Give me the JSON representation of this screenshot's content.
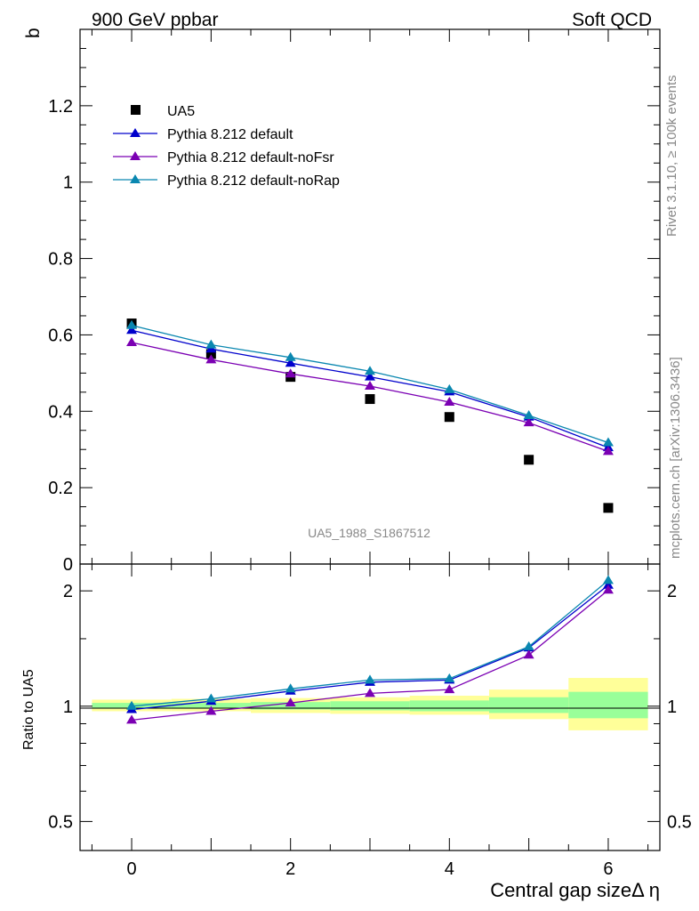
{
  "header": {
    "left": "900 GeV ppbar",
    "right": "Soft QCD"
  },
  "side_labels": {
    "rivet": "Rivet 3.1.10, ≥ 100k events",
    "mcplots": "mcplots.cern.ch [arXiv:1306.3436]"
  },
  "analysis_id": "UA5_1988_S1867512",
  "colors": {
    "ua5": "#000000",
    "default": "#0000cc",
    "noFsr": "#7b00b3",
    "noRap": "#0a87b0",
    "band_inner": "#99ff99",
    "band_outer": "#ffff99"
  },
  "chart_data": [
    {
      "type": "line",
      "panel": "main",
      "ylabel": "b",
      "ylim": [
        0,
        1.4
      ],
      "xlim": [
        -0.65,
        6.65
      ],
      "yticks": [
        0,
        0.2,
        0.4,
        0.6,
        0.8,
        1,
        1.2
      ],
      "ytick_labels": [
        "0",
        "0.2",
        "0.4",
        "0.6",
        "0.8",
        "1",
        "1.2"
      ],
      "x": [
        0,
        1,
        2,
        3,
        4,
        5,
        6
      ],
      "series": [
        {
          "key": "ua5",
          "name": "UA5",
          "marker": "square",
          "values": [
            0.63,
            0.55,
            0.49,
            0.432,
            0.385,
            0.273,
            0.147
          ]
        },
        {
          "key": "default",
          "name": "Pythia 8.212 default",
          "marker": "triangle",
          "values": [
            0.612,
            0.563,
            0.526,
            0.49,
            0.451,
            0.385,
            0.305
          ]
        },
        {
          "key": "noFsr",
          "name": "Pythia 8.212 default-noFsr",
          "marker": "triangle",
          "values": [
            0.58,
            0.535,
            0.498,
            0.466,
            0.424,
            0.37,
            0.295
          ]
        },
        {
          "key": "noRap",
          "name": "Pythia 8.212 default-noRap",
          "marker": "triangle",
          "values": [
            0.625,
            0.574,
            0.541,
            0.505,
            0.457,
            0.389,
            0.318
          ]
        }
      ]
    },
    {
      "type": "line",
      "panel": "ratio",
      "ylabel": "Ratio to UA5",
      "xlabel": "Central gap sizeΔ η",
      "yscale": "log",
      "ylim": [
        0.42,
        2.35
      ],
      "xlim": [
        -0.65,
        6.65
      ],
      "xticks": [
        0,
        2,
        4,
        6
      ],
      "xtick_labels": [
        "0",
        "2",
        "4",
        "6"
      ],
      "yticks": [
        0.5,
        1,
        2
      ],
      "ytick_labels": [
        "0.5",
        "1",
        "2"
      ],
      "x": [
        0,
        1,
        2,
        3,
        4,
        5,
        6
      ],
      "band": {
        "inner": [
          [
            0.985,
            1.02
          ],
          [
            0.985,
            1.02
          ],
          [
            0.98,
            1.025
          ],
          [
            0.975,
            1.03
          ],
          [
            0.97,
            1.035
          ],
          [
            0.96,
            1.055
          ],
          [
            0.93,
            1.09
          ]
        ],
        "outer": [
          [
            0.97,
            1.04
          ],
          [
            0.97,
            1.045
          ],
          [
            0.96,
            1.05
          ],
          [
            0.955,
            1.055
          ],
          [
            0.95,
            1.065
          ],
          [
            0.925,
            1.105
          ],
          [
            0.865,
            1.185
          ]
        ]
      },
      "series": [
        {
          "key": "default",
          "name": "Pythia 8.212 default",
          "values": [
            0.98,
            1.03,
            1.095,
            1.155,
            1.17,
            1.42,
            2.07
          ]
        },
        {
          "key": "noFsr",
          "name": "Pythia 8.212 default-noFsr",
          "values": [
            0.92,
            0.97,
            1.02,
            1.08,
            1.105,
            1.36,
            2.01
          ]
        },
        {
          "key": "noRap",
          "name": "Pythia 8.212 default-noRap",
          "values": [
            1.0,
            1.045,
            1.11,
            1.17,
            1.18,
            1.43,
            2.13
          ]
        }
      ]
    }
  ]
}
